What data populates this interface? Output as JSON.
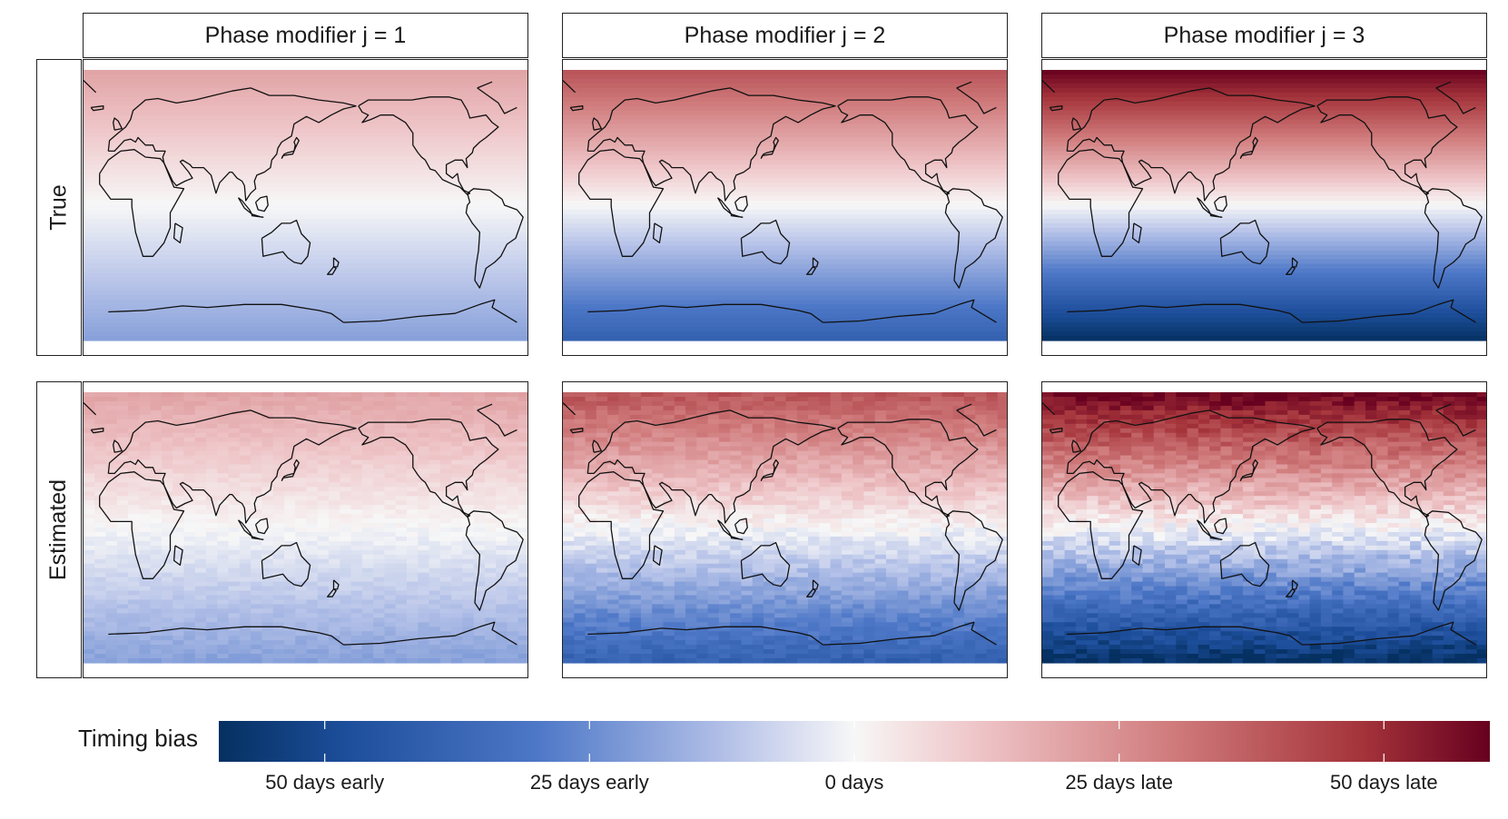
{
  "chart_data": {
    "type": "heatmap",
    "description_columns": [
      "Phase modifier j = 1",
      "Phase modifier j = 2",
      "Phase modifier j = 3"
    ],
    "column_headers": [
      "Phase modifier j = 1",
      "Phase modifier j = 2",
      "Phase modifier j = 3"
    ],
    "row_headers": [
      "True",
      "Estimated"
    ],
    "phase_modifier_j": [
      1,
      2,
      3
    ],
    "latitude_range": [
      -90,
      90
    ],
    "longitude_range": [
      -180,
      180
    ],
    "value_at_north_edge_days": {
      "j1": 20,
      "j2": 40,
      "j3": 60
    },
    "value_at_south_edge_days": {
      "j1": -20,
      "j2": -40,
      "j3": -60
    },
    "colorbar": {
      "title": "Timing bias",
      "range": [
        -60,
        60
      ],
      "ticks": [
        -50,
        -25,
        0,
        25,
        50
      ],
      "tick_labels": [
        "50 days early",
        "25 days early",
        "0 days",
        "25 days late",
        "50 days late"
      ],
      "low_color": "#053061",
      "mid_color": "#f7f7f7",
      "high_color": "#67001f"
    }
  }
}
